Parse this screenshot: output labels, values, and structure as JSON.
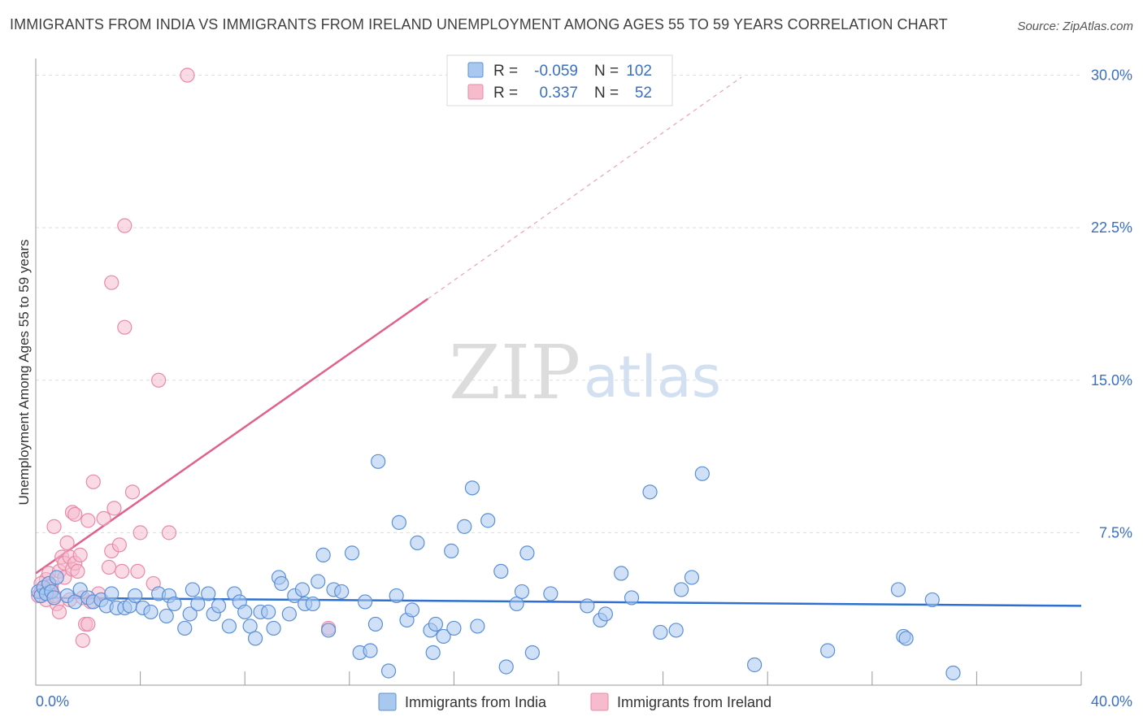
{
  "title": "IMMIGRANTS FROM INDIA VS IMMIGRANTS FROM IRELAND UNEMPLOYMENT AMONG AGES 55 TO 59 YEARS CORRELATION CHART",
  "source": "Source: ZipAtlas.com",
  "watermark": {
    "zip": "ZIP",
    "atlas": "atlas"
  },
  "legend": {
    "india": {
      "r_label": "R =",
      "r_value": "-0.059",
      "n_label": "N =",
      "n_value": "102"
    },
    "ireland": {
      "r_label": "R =",
      "r_value": "0.337",
      "n_label": "N =",
      "n_value": "52"
    }
  },
  "colors": {
    "india_fill": "#a9c8f0",
    "india_stroke": "#5a8fd6",
    "india_line": "#2f6fcf",
    "ireland_fill": "#f6bccd",
    "ireland_stroke": "#e88aa8",
    "ireland_line": "#e0608e",
    "grid": "#dddddd",
    "tick_text": "#3a6fc4"
  },
  "chart_data": {
    "type": "scatter",
    "title": "IMMIGRANTS FROM INDIA VS IMMIGRANTS FROM IRELAND UNEMPLOYMENT AMONG AGES 55 TO 59 YEARS CORRELATION CHART",
    "xlabel": "",
    "ylabel": "Unemployment Among Ages 55 to 59 years",
    "xlim": [
      0,
      40
    ],
    "ylim": [
      0,
      30.5
    ],
    "x_tick_labels": [
      "0.0%",
      "40.0%"
    ],
    "y_ticks": [
      7.5,
      15.0,
      22.5,
      30.0
    ],
    "y_tick_labels": [
      "7.5%",
      "15.0%",
      "22.5%",
      "30.0%"
    ],
    "grid": true,
    "legend_position": "bottom",
    "series": [
      {
        "name": "Immigrants from India",
        "trend": {
          "x0": 0.0,
          "y0": 4.3,
          "x1": 40.0,
          "y1": 3.9,
          "dashed_to": null
        },
        "points": [
          [
            0.1,
            4.6
          ],
          [
            0.2,
            4.4
          ],
          [
            0.3,
            4.8
          ],
          [
            0.4,
            4.5
          ],
          [
            0.5,
            5.0
          ],
          [
            0.6,
            4.6
          ],
          [
            0.7,
            4.3
          ],
          [
            0.8,
            5.3
          ],
          [
            1.2,
            4.4
          ],
          [
            1.5,
            4.1
          ],
          [
            1.7,
            4.7
          ],
          [
            2.0,
            4.3
          ],
          [
            2.2,
            4.1
          ],
          [
            2.5,
            4.2
          ],
          [
            2.7,
            3.9
          ],
          [
            2.9,
            4.5
          ],
          [
            3.1,
            3.8
          ],
          [
            3.4,
            3.8
          ],
          [
            3.6,
            3.9
          ],
          [
            3.8,
            4.4
          ],
          [
            4.1,
            3.8
          ],
          [
            4.4,
            3.6
          ],
          [
            4.7,
            4.5
          ],
          [
            5.0,
            3.4
          ],
          [
            5.1,
            4.4
          ],
          [
            5.3,
            4.0
          ],
          [
            5.7,
            2.8
          ],
          [
            5.9,
            3.5
          ],
          [
            6.0,
            4.7
          ],
          [
            6.2,
            4.0
          ],
          [
            6.6,
            4.5
          ],
          [
            6.8,
            3.5
          ],
          [
            7.0,
            3.9
          ],
          [
            7.4,
            2.9
          ],
          [
            7.6,
            4.5
          ],
          [
            7.8,
            4.1
          ],
          [
            8.0,
            3.6
          ],
          [
            8.2,
            2.9
          ],
          [
            8.4,
            2.3
          ],
          [
            8.6,
            3.6
          ],
          [
            8.9,
            3.6
          ],
          [
            9.1,
            2.8
          ],
          [
            9.3,
            5.3
          ],
          [
            9.4,
            5.0
          ],
          [
            9.7,
            3.5
          ],
          [
            9.9,
            4.4
          ],
          [
            10.2,
            4.7
          ],
          [
            10.3,
            4.0
          ],
          [
            10.6,
            4.0
          ],
          [
            10.8,
            5.1
          ],
          [
            11.0,
            6.4
          ],
          [
            11.2,
            2.7
          ],
          [
            11.4,
            4.7
          ],
          [
            11.7,
            4.6
          ],
          [
            12.1,
            6.5
          ],
          [
            12.4,
            1.6
          ],
          [
            12.6,
            4.1
          ],
          [
            12.8,
            1.7
          ],
          [
            13.0,
            3.0
          ],
          [
            13.1,
            11.0
          ],
          [
            13.5,
            0.7
          ],
          [
            13.8,
            4.4
          ],
          [
            13.9,
            8.0
          ],
          [
            14.2,
            3.2
          ],
          [
            14.4,
            3.7
          ],
          [
            14.6,
            7.0
          ],
          [
            15.1,
            2.7
          ],
          [
            15.2,
            1.6
          ],
          [
            15.3,
            3.0
          ],
          [
            15.6,
            2.4
          ],
          [
            15.9,
            6.6
          ],
          [
            16.0,
            2.8
          ],
          [
            16.4,
            7.8
          ],
          [
            16.7,
            9.7
          ],
          [
            16.9,
            2.9
          ],
          [
            17.3,
            8.1
          ],
          [
            17.8,
            5.6
          ],
          [
            18.0,
            0.9
          ],
          [
            18.4,
            4.0
          ],
          [
            18.6,
            4.6
          ],
          [
            18.8,
            6.5
          ],
          [
            19.0,
            1.6
          ],
          [
            19.7,
            4.5
          ],
          [
            21.1,
            3.9
          ],
          [
            21.6,
            3.2
          ],
          [
            21.8,
            3.5
          ],
          [
            22.4,
            5.5
          ],
          [
            22.8,
            4.3
          ],
          [
            23.5,
            9.5
          ],
          [
            23.9,
            2.6
          ],
          [
            24.5,
            2.7
          ],
          [
            24.7,
            4.7
          ],
          [
            25.1,
            5.3
          ],
          [
            25.5,
            10.4
          ],
          [
            27.5,
            1.0
          ],
          [
            30.3,
            1.7
          ],
          [
            33.0,
            4.7
          ],
          [
            33.2,
            2.4
          ],
          [
            33.3,
            2.3
          ],
          [
            34.3,
            4.2
          ],
          [
            35.1,
            0.6
          ]
        ]
      },
      {
        "name": "Immigrants from Ireland",
        "trend": {
          "x0": 0.0,
          "y0": 5.5,
          "x1": 15.0,
          "y1": 19.0,
          "dashed_to": [
            27.0,
            29.9
          ]
        },
        "points": [
          [
            0.1,
            4.4
          ],
          [
            0.2,
            4.6
          ],
          [
            0.3,
            4.8
          ],
          [
            0.4,
            5.2
          ],
          [
            0.5,
            5.5
          ],
          [
            0.5,
            4.5
          ],
          [
            0.6,
            4.9
          ],
          [
            0.7,
            7.8
          ],
          [
            0.8,
            4.0
          ],
          [
            0.9,
            3.6
          ],
          [
            0.9,
            5.6
          ],
          [
            1.0,
            6.3
          ],
          [
            1.1,
            5.3
          ],
          [
            1.1,
            6.0
          ],
          [
            1.2,
            7.0
          ],
          [
            1.3,
            6.3
          ],
          [
            1.3,
            4.2
          ],
          [
            1.4,
            8.5
          ],
          [
            1.4,
            5.7
          ],
          [
            1.5,
            8.4
          ],
          [
            1.5,
            6.0
          ],
          [
            1.6,
            5.6
          ],
          [
            1.7,
            6.4
          ],
          [
            1.8,
            4.3
          ],
          [
            1.9,
            3.0
          ],
          [
            1.8,
            2.2
          ],
          [
            2.0,
            3.0
          ],
          [
            2.0,
            8.1
          ],
          [
            2.1,
            4.1
          ],
          [
            2.2,
            10.0
          ],
          [
            2.4,
            4.5
          ],
          [
            2.6,
            8.2
          ],
          [
            2.8,
            5.8
          ],
          [
            2.9,
            19.8
          ],
          [
            2.9,
            6.6
          ],
          [
            3.3,
            5.6
          ],
          [
            3.0,
            8.7
          ],
          [
            3.2,
            6.9
          ],
          [
            3.4,
            17.6
          ],
          [
            3.4,
            22.6
          ],
          [
            3.7,
            9.5
          ],
          [
            3.9,
            5.6
          ],
          [
            4.0,
            7.5
          ],
          [
            4.5,
            5.0
          ],
          [
            4.7,
            15.0
          ],
          [
            5.1,
            7.5
          ],
          [
            5.8,
            30.0
          ],
          [
            11.2,
            2.8
          ],
          [
            0.2,
            5.0
          ],
          [
            0.4,
            4.2
          ],
          [
            0.6,
            4.7
          ],
          [
            0.7,
            4.4
          ]
        ]
      }
    ]
  },
  "bottom_legend": [
    "Immigrants from India",
    "Immigrants from Ireland"
  ]
}
